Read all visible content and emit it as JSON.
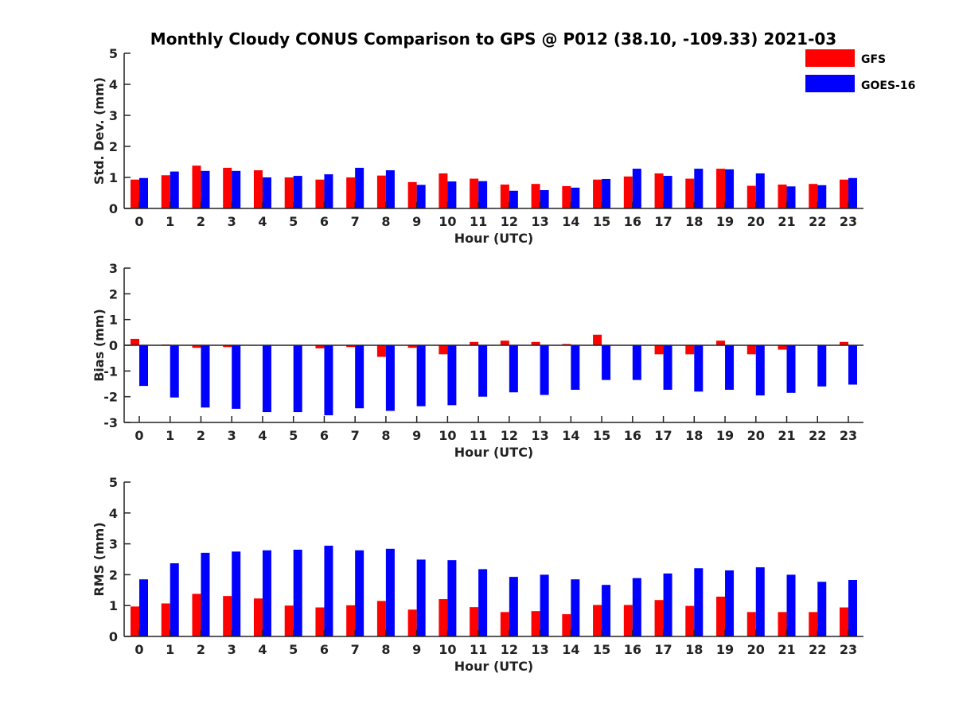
{
  "title": "Monthly Cloudy CONUS Comparison to GPS @ P012 (38.10, -109.33) 2021-03",
  "legend": [
    {
      "name": "GFS",
      "color": "#ff0000"
    },
    {
      "name": "GOES-16",
      "color": "#0000ff"
    }
  ],
  "chart_data": [
    {
      "type": "bar",
      "xlabel": "Hour (UTC)",
      "ylabel": "Std. Dev. (mm)",
      "ylim": [
        0,
        5
      ],
      "yticks": [
        0,
        1,
        2,
        3,
        4,
        5
      ],
      "categories": [
        "0",
        "1",
        "2",
        "3",
        "4",
        "5",
        "6",
        "7",
        "8",
        "9",
        "10",
        "11",
        "12",
        "13",
        "14",
        "15",
        "16",
        "17",
        "18",
        "19",
        "20",
        "21",
        "22",
        "23"
      ],
      "series": [
        {
          "name": "GFS",
          "color": "#ff0000",
          "values": [
            0.93,
            1.07,
            1.38,
            1.31,
            1.23,
            1.0,
            0.93,
            1.0,
            1.06,
            0.85,
            1.13,
            0.96,
            0.77,
            0.79,
            0.72,
            0.93,
            1.03,
            1.13,
            0.96,
            1.28,
            0.73,
            0.77,
            0.79,
            0.93
          ]
        },
        {
          "name": "GOES-16",
          "color": "#0000ff",
          "values": [
            0.98,
            1.19,
            1.21,
            1.21,
            1.0,
            1.05,
            1.1,
            1.31,
            1.23,
            0.76,
            0.87,
            0.88,
            0.57,
            0.59,
            0.67,
            0.95,
            1.28,
            1.05,
            1.28,
            1.26,
            1.13,
            0.71,
            0.75,
            0.98
          ]
        }
      ]
    },
    {
      "type": "bar",
      "xlabel": "Hour (UTC)",
      "ylabel": "Bias (mm)",
      "ylim": [
        -3,
        3
      ],
      "yticks": [
        -3,
        -2,
        -1,
        0,
        1,
        2,
        3
      ],
      "categories": [
        "0",
        "1",
        "2",
        "3",
        "4",
        "5",
        "6",
        "7",
        "8",
        "9",
        "10",
        "11",
        "12",
        "13",
        "14",
        "15",
        "16",
        "17",
        "18",
        "19",
        "20",
        "21",
        "22",
        "23"
      ],
      "series": [
        {
          "name": "GFS",
          "color": "#ff0000",
          "values": [
            0.25,
            0.03,
            -0.1,
            -0.07,
            0.0,
            0.0,
            -0.12,
            -0.07,
            -0.45,
            -0.1,
            -0.35,
            0.13,
            0.18,
            0.13,
            0.05,
            0.41,
            0.0,
            -0.35,
            -0.35,
            0.18,
            -0.35,
            -0.17,
            0.0,
            0.13
          ]
        },
        {
          "name": "GOES-16",
          "color": "#0000ff",
          "values": [
            -1.58,
            -2.03,
            -2.42,
            -2.47,
            -2.6,
            -2.6,
            -2.72,
            -2.45,
            -2.55,
            -2.37,
            -2.33,
            -2.0,
            -1.83,
            -1.93,
            -1.73,
            -1.35,
            -1.35,
            -1.73,
            -1.8,
            -1.73,
            -1.95,
            -1.85,
            -1.6,
            -1.53
          ]
        }
      ]
    },
    {
      "type": "bar",
      "xlabel": "Hour (UTC)",
      "ylabel": "RMS (mm)",
      "ylim": [
        0,
        5
      ],
      "yticks": [
        0,
        1,
        2,
        3,
        4,
        5
      ],
      "categories": [
        "0",
        "1",
        "2",
        "3",
        "4",
        "5",
        "6",
        "7",
        "8",
        "9",
        "10",
        "11",
        "12",
        "13",
        "14",
        "15",
        "16",
        "17",
        "18",
        "19",
        "20",
        "21",
        "22",
        "23"
      ],
      "series": [
        {
          "name": "GFS",
          "color": "#ff0000",
          "values": [
            0.97,
            1.07,
            1.38,
            1.31,
            1.23,
            1.0,
            0.94,
            1.01,
            1.15,
            0.87,
            1.21,
            0.95,
            0.79,
            0.82,
            0.72,
            1.02,
            1.02,
            1.18,
            0.99,
            1.29,
            0.79,
            0.79,
            0.79,
            0.94
          ]
        },
        {
          "name": "GOES-16",
          "color": "#0000ff",
          "values": [
            1.85,
            2.37,
            2.71,
            2.75,
            2.79,
            2.81,
            2.94,
            2.79,
            2.84,
            2.49,
            2.47,
            2.18,
            1.93,
            2.0,
            1.85,
            1.67,
            1.89,
            2.04,
            2.21,
            2.14,
            2.24,
            2.0,
            1.77,
            1.83
          ]
        }
      ]
    }
  ]
}
